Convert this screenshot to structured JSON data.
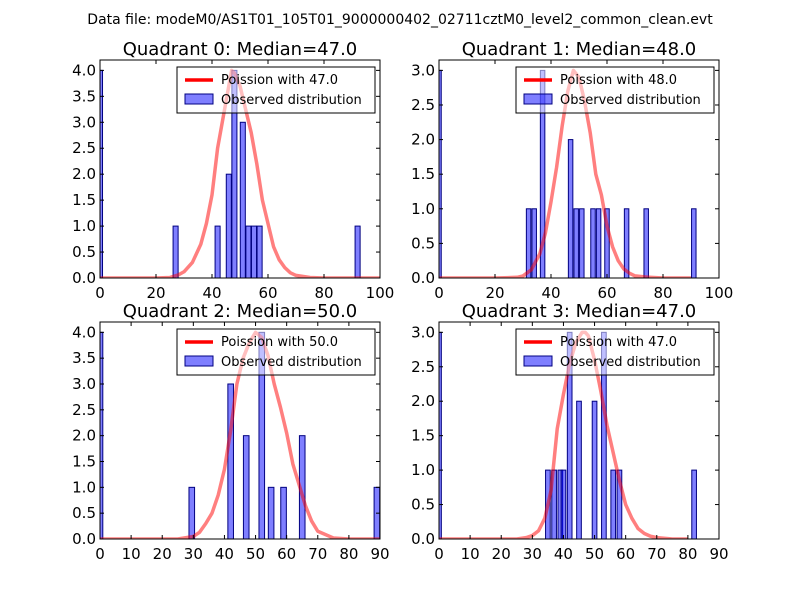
{
  "title": "Data file: modeM0/AS1T01_105T01_9000000402_02711cztM0_level2_common_clean.evt",
  "colors": {
    "poisson": "#ff0000",
    "bars": "#0000ff",
    "bar_edge": "#000080"
  },
  "chart_data": [
    {
      "type": "bar",
      "title": "Quadrant 0: Median=47.0",
      "legend": {
        "line_label": "Poission with 47.0",
        "bar_label": "Observed distribution",
        "placement": "top-right"
      },
      "xlim": [
        0,
        100
      ],
      "ylim": [
        0,
        4.2
      ],
      "xticks": [
        0,
        20,
        40,
        60,
        80,
        100
      ],
      "xtick_labels": [
        "0",
        "20",
        "40",
        "60",
        "80",
        "100"
      ],
      "yticks": [
        0,
        0.5,
        1,
        1.5,
        2,
        2.5,
        3,
        3.5,
        4
      ],
      "ytick_labels": [
        "0.0",
        "0.5",
        "1.0",
        "1.5",
        "2.0",
        "2.5",
        "3.0",
        "3.5",
        "4.0"
      ],
      "bar_width": 1.8,
      "bars": [
        {
          "x": 0,
          "y": 4
        },
        {
          "x": 27,
          "y": 1
        },
        {
          "x": 42,
          "y": 1
        },
        {
          "x": 46,
          "y": 2
        },
        {
          "x": 48,
          "y": 4
        },
        {
          "x": 51,
          "y": 3
        },
        {
          "x": 53,
          "y": 1
        },
        {
          "x": 55,
          "y": 1
        },
        {
          "x": 57,
          "y": 1
        },
        {
          "x": 92,
          "y": 1
        }
      ],
      "poisson": {
        "x": [
          0,
          10,
          20,
          25,
          28,
          30,
          33,
          36,
          38,
          40,
          42,
          44,
          46,
          47,
          48,
          50,
          52,
          54,
          56,
          58,
          60,
          62,
          64,
          66,
          68,
          70,
          75,
          80,
          90,
          100
        ],
        "y": [
          0,
          0,
          0,
          0.01,
          0.06,
          0.12,
          0.3,
          0.65,
          1.05,
          1.6,
          2.5,
          3.1,
          3.7,
          4.0,
          3.95,
          3.7,
          3.25,
          2.8,
          2.2,
          1.5,
          1.05,
          0.6,
          0.35,
          0.2,
          0.1,
          0.05,
          0.01,
          0,
          0,
          0
        ]
      }
    },
    {
      "type": "bar",
      "title": "Quadrant 1: Median=48.0",
      "legend": {
        "line_label": "Poission with 48.0",
        "bar_label": "Observed distribution",
        "placement": "top-right"
      },
      "xlim": [
        0,
        100
      ],
      "ylim": [
        0,
        3.15
      ],
      "xticks": [
        0,
        20,
        40,
        60,
        80,
        100
      ],
      "xtick_labels": [
        "0",
        "20",
        "40",
        "60",
        "80",
        "100"
      ],
      "yticks": [
        0,
        0.5,
        1,
        1.5,
        2,
        2.5,
        3
      ],
      "ytick_labels": [
        "0.0",
        "0.5",
        "1.0",
        "1.5",
        "2.0",
        "2.5",
        "3.0"
      ],
      "bar_width": 1.6,
      "bars": [
        {
          "x": 0,
          "y": 3
        },
        {
          "x": 32,
          "y": 1
        },
        {
          "x": 34,
          "y": 1
        },
        {
          "x": 37,
          "y": 3
        },
        {
          "x": 47,
          "y": 2
        },
        {
          "x": 49,
          "y": 1
        },
        {
          "x": 51,
          "y": 1
        },
        {
          "x": 55,
          "y": 1
        },
        {
          "x": 57,
          "y": 1
        },
        {
          "x": 60,
          "y": 1
        },
        {
          "x": 67,
          "y": 1
        },
        {
          "x": 74,
          "y": 1
        },
        {
          "x": 91,
          "y": 1
        }
      ],
      "poisson": {
        "x": [
          0,
          10,
          20,
          28,
          30,
          33,
          36,
          38,
          40,
          42,
          44,
          46,
          48,
          50,
          52,
          54,
          56,
          58,
          60,
          62,
          64,
          66,
          68,
          70,
          75,
          80,
          90
        ],
        "y": [
          0,
          0,
          0,
          0.01,
          0.03,
          0.12,
          0.35,
          0.65,
          1.1,
          1.6,
          2.2,
          2.7,
          3.0,
          2.9,
          2.55,
          2.1,
          1.5,
          1.2,
          0.75,
          0.45,
          0.25,
          0.13,
          0.07,
          0.03,
          0.01,
          0,
          0
        ]
      }
    },
    {
      "type": "bar",
      "title": "Quadrant 2: Median=50.0",
      "legend": {
        "line_label": "Poission with 50.0",
        "bar_label": "Observed distribution",
        "placement": "top-right"
      },
      "xlim": [
        0,
        90
      ],
      "ylim": [
        0,
        4.2
      ],
      "xticks": [
        0,
        10,
        20,
        30,
        40,
        50,
        60,
        70,
        80,
        90
      ],
      "xtick_labels": [
        "0",
        "10",
        "20",
        "30",
        "40",
        "50",
        "60",
        "70",
        "80",
        "90"
      ],
      "yticks": [
        0,
        0.5,
        1,
        1.5,
        2,
        2.5,
        3,
        3.5,
        4
      ],
      "ytick_labels": [
        "0.0",
        "0.5",
        "1.0",
        "1.5",
        "2.0",
        "2.5",
        "3.0",
        "3.5",
        "4.0"
      ],
      "bar_width": 1.8,
      "bars": [
        {
          "x": 0,
          "y": 4
        },
        {
          "x": 29.5,
          "y": 1
        },
        {
          "x": 42,
          "y": 3
        },
        {
          "x": 47,
          "y": 2
        },
        {
          "x": 52,
          "y": 4
        },
        {
          "x": 55,
          "y": 1
        },
        {
          "x": 59,
          "y": 1
        },
        {
          "x": 65,
          "y": 2
        },
        {
          "x": 89,
          "y": 1
        }
      ],
      "poisson": {
        "x": [
          0,
          10,
          20,
          25,
          30,
          32,
          34,
          36,
          38,
          40,
          42,
          44,
          46,
          48,
          50,
          52,
          54,
          56,
          58,
          60,
          62,
          64,
          66,
          68,
          70,
          75,
          80,
          90
        ],
        "y": [
          0,
          0,
          0,
          0,
          0.05,
          0.13,
          0.3,
          0.5,
          0.85,
          1.35,
          2.1,
          3.0,
          3.5,
          3.8,
          4.0,
          3.9,
          3.55,
          3.0,
          2.55,
          2.05,
          1.45,
          1.05,
          0.65,
          0.35,
          0.15,
          0.02,
          0,
          0
        ]
      }
    },
    {
      "type": "bar",
      "title": "Quadrant 3: Median=47.0",
      "legend": {
        "line_label": "Poission with 47.0",
        "bar_label": "Observed distribution",
        "placement": "top-right"
      },
      "xlim": [
        0,
        90
      ],
      "ylim": [
        0,
        3.15
      ],
      "xticks": [
        0,
        10,
        20,
        30,
        40,
        50,
        60,
        70,
        80,
        90
      ],
      "xtick_labels": [
        "0",
        "10",
        "20",
        "30",
        "40",
        "50",
        "60",
        "70",
        "80",
        "90"
      ],
      "yticks": [
        0,
        0.5,
        1,
        1.5,
        2,
        2.5,
        3
      ],
      "ytick_labels": [
        "0.0",
        "0.5",
        "1.0",
        "1.5",
        "2.0",
        "2.5",
        "3.0"
      ],
      "bar_width": 1.5,
      "bars": [
        {
          "x": 0,
          "y": 3
        },
        {
          "x": 35,
          "y": 1
        },
        {
          "x": 37,
          "y": 1
        },
        {
          "x": 39,
          "y": 1
        },
        {
          "x": 40,
          "y": 1
        },
        {
          "x": 42,
          "y": 3
        },
        {
          "x": 45,
          "y": 2
        },
        {
          "x": 50,
          "y": 2
        },
        {
          "x": 53,
          "y": 3
        },
        {
          "x": 56,
          "y": 1
        },
        {
          "x": 58,
          "y": 1
        },
        {
          "x": 82,
          "y": 1
        }
      ],
      "poisson": {
        "x": [
          0,
          10,
          20,
          25,
          28,
          30,
          32,
          34,
          36,
          38,
          40,
          42,
          44,
          46,
          47,
          48,
          50,
          52,
          54,
          56,
          58,
          60,
          62,
          64,
          66,
          68,
          70,
          75,
          80
        ],
        "y": [
          0,
          0,
          0,
          0,
          0.02,
          0.05,
          0.12,
          0.3,
          0.7,
          1.6,
          2.1,
          2.55,
          2.85,
          3.0,
          3.0,
          2.95,
          2.6,
          2.15,
          1.65,
          1.25,
          0.85,
          0.5,
          0.3,
          0.15,
          0.08,
          0.04,
          0.02,
          0,
          0
        ]
      }
    }
  ]
}
